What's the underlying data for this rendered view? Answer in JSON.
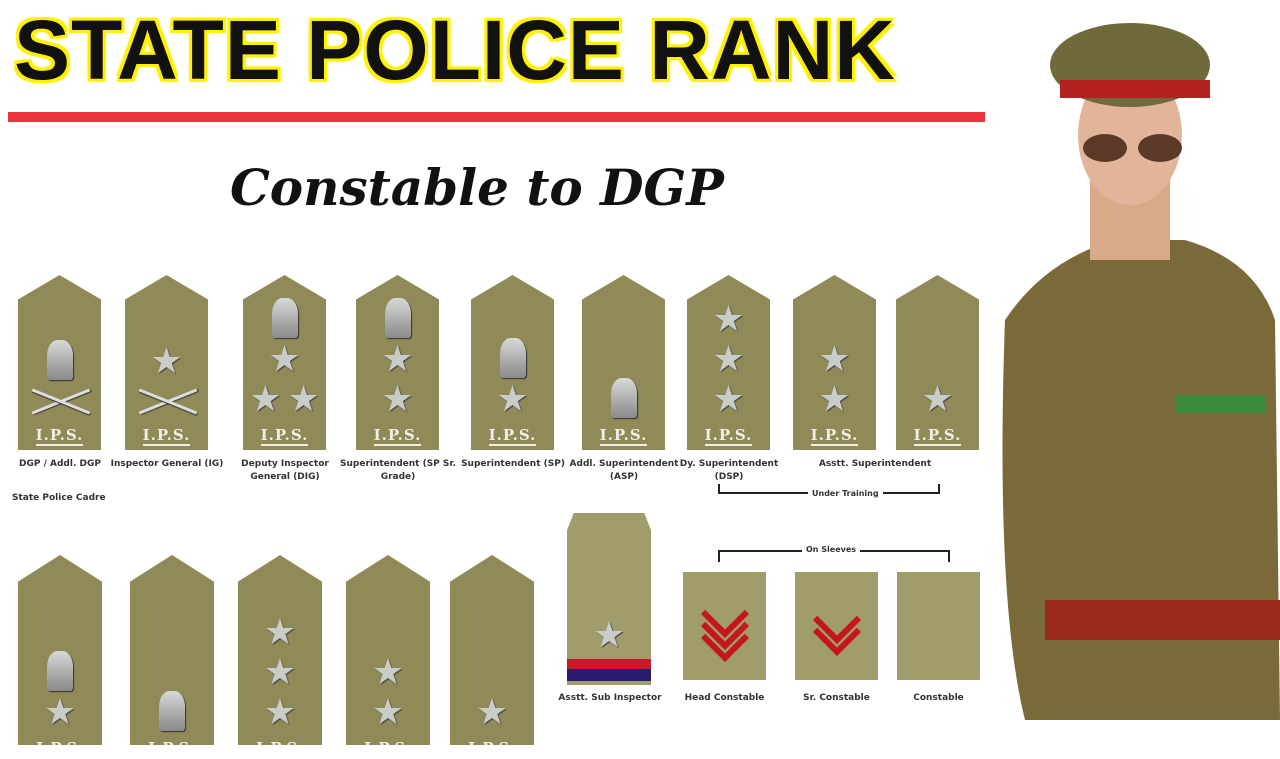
{
  "title": "STATE POLICE RANK",
  "subtitle": "Constable to DGP",
  "insignia_text": "I.P.S.",
  "colors": {
    "title_highlight": "#fff200",
    "underline": "#e8343a",
    "badge": "#8f8a58",
    "chevron": "#c4161c"
  },
  "top_row": [
    {
      "label": "DGP / Addl. DGP",
      "symbols": [
        "emblem",
        "baton"
      ]
    },
    {
      "label": "Inspector General (IG)",
      "symbols": [
        "star",
        "baton"
      ]
    },
    {
      "label": "Deputy Inspector General (DIG)",
      "symbols": [
        "emblem",
        "star",
        "pair"
      ]
    },
    {
      "label": "Superintendent (SP Sr. Grade)",
      "symbols": [
        "emblem",
        "star",
        "star"
      ]
    },
    {
      "label": "Superintendent (SP)",
      "symbols": [
        "emblem",
        "star"
      ]
    },
    {
      "label": "Addl. Superintendent (ASP)",
      "symbols": [
        "emblem"
      ]
    },
    {
      "label": "Dy. Superintendent (DSP)",
      "symbols": [
        "star",
        "star",
        "star"
      ]
    },
    {
      "label": "",
      "symbols": [
        "star",
        "star"
      ]
    },
    {
      "label": "",
      "symbols": [
        "star"
      ]
    }
  ],
  "asst_superintendent_label": "Asstt. Superintendent",
  "under_training_label": "Under Training",
  "cadre_label": "State Police Cadre",
  "bottom_row": [
    {
      "symbols": [
        "emblem",
        "star"
      ]
    },
    {
      "symbols": [
        "emblem"
      ]
    },
    {
      "symbols": [
        "star",
        "star",
        "star"
      ]
    },
    {
      "symbols": [
        "star",
        "star"
      ]
    },
    {
      "symbols": [
        "star"
      ]
    }
  ],
  "asi_label": "Asstt. Sub Inspector",
  "on_sleeves_label": "On Sleeves",
  "sleeves": [
    {
      "label": "Head Constable",
      "chevrons": 3
    },
    {
      "label": "Sr. Constable",
      "chevrons": 2
    },
    {
      "label": "Constable",
      "chevrons": 0
    }
  ]
}
